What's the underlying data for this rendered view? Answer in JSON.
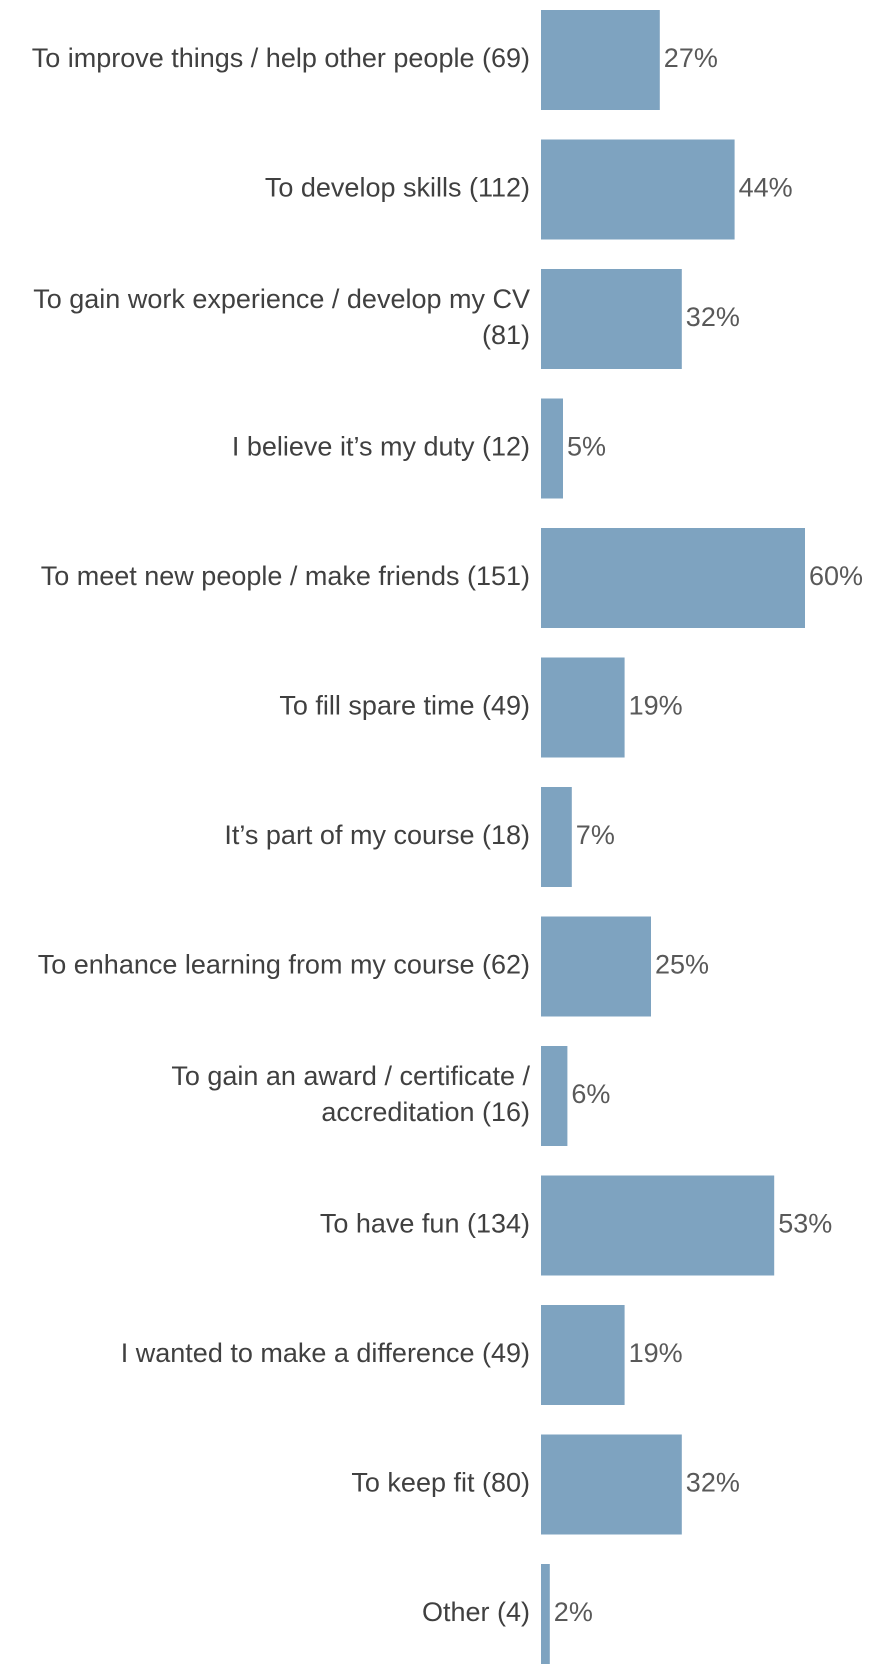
{
  "chart_data": {
    "type": "bar",
    "orientation": "horizontal",
    "color": "#7ea3c0",
    "categories": [
      "To improve things / help other people (69)",
      "To develop skills (112)",
      "To gain work experience / develop my CV (81)",
      "I believe it’s my duty (12)",
      "To meet new people / make friends (151)",
      "To fill spare time (49)",
      "It’s part of my course (18)",
      "To enhance learning from my course (62)",
      "To gain an award / certificate / accreditation (16)",
      "To have fun (134)",
      "I wanted to make a difference (49)",
      "To keep fit (80)",
      "Other (4)"
    ],
    "values": [
      27,
      44,
      32,
      5,
      60,
      19,
      7,
      25,
      6,
      53,
      19,
      32,
      2
    ],
    "value_labels": [
      "27%",
      "44%",
      "32%",
      "5%",
      "60%",
      "19%",
      "7%",
      "25%",
      "6%",
      "53%",
      "19%",
      "32%",
      "2%"
    ]
  }
}
